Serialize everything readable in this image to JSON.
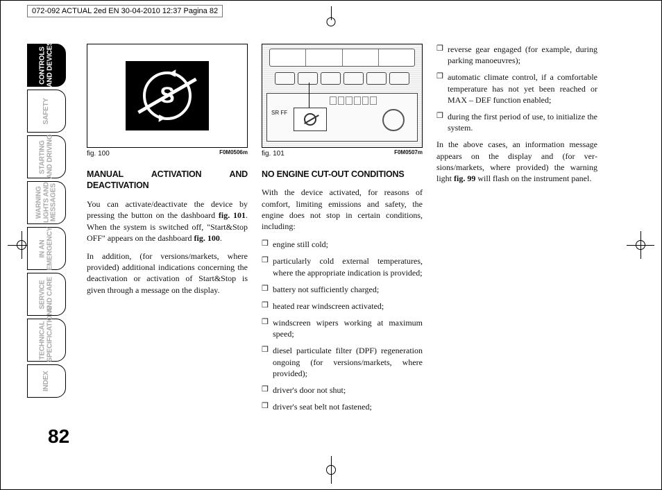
{
  "header": "072-092 ACTUAL 2ed EN  30-04-2010  12:37  Pagina 82",
  "page_number": "82",
  "sidebar": {
    "tabs": [
      {
        "label": "CONTROLS\nAND DEVICES",
        "active": true
      },
      {
        "label": "SAFETY",
        "active": false
      },
      {
        "label": "STARTING\nAND DRIVING",
        "active": false
      },
      {
        "label": "WARNING\nLIGHTS AND\nMESSAGES",
        "active": false
      },
      {
        "label": "IN AN\nEMERGENCY",
        "active": false
      },
      {
        "label": "SERVICE\nAND CARE",
        "active": false
      },
      {
        "label": "TECHNICAL\nSPECIFICATIONS",
        "active": false
      },
      {
        "label": "INDEX",
        "active": false
      }
    ]
  },
  "col1": {
    "fig_label": "fig. 100",
    "fig_code": "F0M0506m",
    "heading": "MANUAL ACTIVATION AND DEACTIVATION",
    "p1a": "You can activate/deactivate the device by pressing the button on the dashboard ",
    "p1b": "fig. 101",
    "p1c": ". When the system is switched off, \"Start&Stop OFF\" appears on the dash­board ",
    "p1d": "fig. 100",
    "p1e": ".",
    "p2": "In addition, (for versions/markets, where provided) additional indications concern­ing the deactivation or activation of Start&Stop is given through a message on the display."
  },
  "col2": {
    "fig_label": "fig. 101",
    "fig_code": "F0M0507m",
    "heading": "NO ENGINE CUT-OUT CONDITIONS",
    "p1": "With the device activated, for reasons of comfort, limiting emissions and safety, the engine does not stop in certain conditions, including:",
    "bullets": [
      "engine still cold;",
      "particularly cold external temperatures, where the appropriate indication is pro­vided;",
      "battery not sufficiently charged;",
      "heated rear windscreen activated;",
      "windscreen wipers working at maxi­mum speed;",
      "diesel particulate filter (DPF) regener­ation ongoing (for versions/markets, where provided);",
      "driver's door not shut;",
      "driver's seat belt not fastened;"
    ],
    "sr_label": "SR\nFF"
  },
  "col3": {
    "bullets": [
      "reverse gear engaged (for example, dur­ing parking manoeuvres);",
      "automatic climate control, if a com­fortable temperature has not yet been reached or MAX – DEF function en­abled;",
      "during the first period of use, to initial­ize the system."
    ],
    "p1a": "In the above cases, an information mes­sage appears on the display and (for ver­sions/markets, where provided) the warn­ing light ",
    "p1b": "fig. 99",
    "p1c": " will flash on the instrument panel."
  }
}
